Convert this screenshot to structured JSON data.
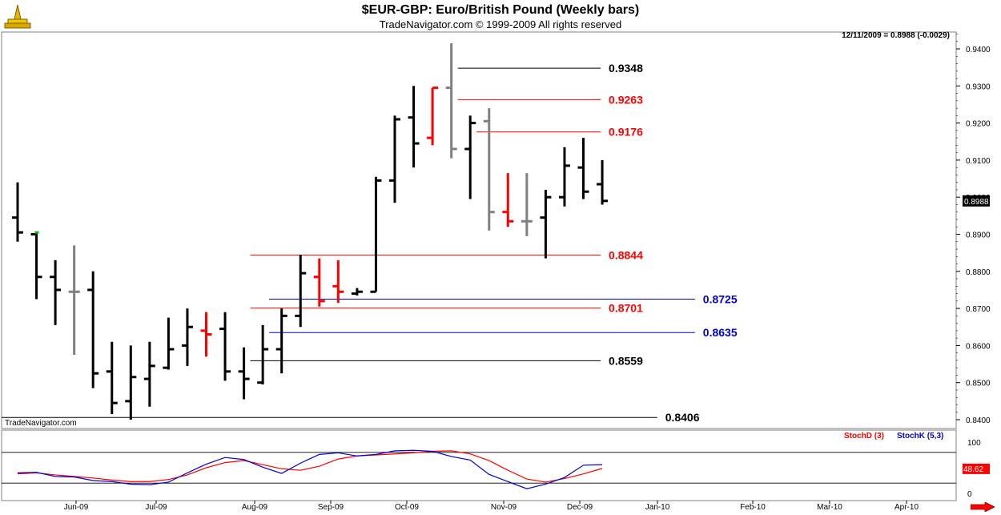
{
  "header": {
    "title": "$EUR-GBP:  Euro/British Pound  (Weekly bars)",
    "subtitle": "TradeNavigator.com © 1999-2009 All rights reserved",
    "last_quote": "12/11/2009 = 0.8988 (-0.0029)"
  },
  "watermark": "TradeNavigator.com",
  "colors": {
    "up_bar": "#000000",
    "down_bar": "#ff0000",
    "neutral_bar": "#808080",
    "red_level": "#ff0000",
    "blue_level": "#0000cc",
    "black_level": "#000000",
    "stoch_d": "#ff0000",
    "stoch_k": "#0000cc"
  },
  "chart_data": [
    {
      "type": "ohlc",
      "y_ticks": [
        "0.9400",
        "0.9300",
        "0.9200",
        "0.9100",
        "0.9000",
        "0.8900",
        "0.8800",
        "0.8700",
        "0.8600",
        "0.8500",
        "0.8400"
      ],
      "ylim": [
        0.8385,
        0.9455
      ],
      "x_ticks": [
        "Jun-09",
        "Jul-09",
        "Aug-09",
        "Sep-09",
        "Oct-09",
        "Nov-09",
        "Dec-09",
        "Jan-10",
        "Feb-10",
        "Mar-10",
        "Apr-10"
      ],
      "last_price_label": "0.8988",
      "bars": [
        {
          "o": 0.8945,
          "h": 0.904,
          "l": 0.888,
          "c": 0.8905,
          "col": "k"
        },
        {
          "o": 0.89,
          "h": 0.8905,
          "l": 0.8725,
          "c": 0.8785,
          "col": "k"
        },
        {
          "o": 0.8785,
          "h": 0.883,
          "l": 0.8655,
          "c": 0.875,
          "col": "k"
        },
        {
          "o": 0.8745,
          "h": 0.887,
          "l": 0.8575,
          "c": 0.8745,
          "col": "g"
        },
        {
          "o": 0.875,
          "h": 0.88,
          "l": 0.8485,
          "c": 0.8525,
          "col": "k"
        },
        {
          "o": 0.853,
          "h": 0.861,
          "l": 0.8415,
          "c": 0.8445,
          "col": "k"
        },
        {
          "o": 0.845,
          "h": 0.86,
          "l": 0.84,
          "c": 0.8515,
          "col": "k"
        },
        {
          "o": 0.851,
          "h": 0.861,
          "l": 0.8435,
          "c": 0.8545,
          "col": "k"
        },
        {
          "o": 0.854,
          "h": 0.8675,
          "l": 0.8535,
          "c": 0.859,
          "col": "k"
        },
        {
          "o": 0.86,
          "h": 0.87,
          "l": 0.8545,
          "c": 0.865,
          "col": "k"
        },
        {
          "o": 0.864,
          "h": 0.869,
          "l": 0.857,
          "c": 0.863,
          "col": "r"
        },
        {
          "o": 0.8645,
          "h": 0.869,
          "l": 0.8505,
          "c": 0.853,
          "col": "k"
        },
        {
          "o": 0.853,
          "h": 0.8595,
          "l": 0.8455,
          "c": 0.851,
          "col": "k"
        },
        {
          "o": 0.85,
          "h": 0.8655,
          "l": 0.8495,
          "c": 0.859,
          "col": "k"
        },
        {
          "o": 0.859,
          "h": 0.87,
          "l": 0.8525,
          "c": 0.868,
          "col": "k"
        },
        {
          "o": 0.868,
          "h": 0.8845,
          "l": 0.865,
          "c": 0.8795,
          "col": "k"
        },
        {
          "o": 0.8785,
          "h": 0.8835,
          "l": 0.8705,
          "c": 0.872,
          "col": "r"
        },
        {
          "o": 0.876,
          "h": 0.883,
          "l": 0.8715,
          "c": 0.8745,
          "col": "r"
        },
        {
          "o": 0.874,
          "h": 0.8755,
          "l": 0.8735,
          "c": 0.8745,
          "col": "k"
        },
        {
          "o": 0.8745,
          "h": 0.9055,
          "l": 0.8745,
          "c": 0.9045,
          "col": "k"
        },
        {
          "o": 0.9045,
          "h": 0.922,
          "l": 0.8985,
          "c": 0.921,
          "col": "k"
        },
        {
          "o": 0.9215,
          "h": 0.93,
          "l": 0.908,
          "c": 0.9145,
          "col": "k"
        },
        {
          "o": 0.916,
          "h": 0.9295,
          "l": 0.914,
          "c": 0.9295,
          "col": "r"
        },
        {
          "o": 0.9295,
          "h": 0.9415,
          "l": 0.9105,
          "c": 0.913,
          "col": "g"
        },
        {
          "o": 0.913,
          "h": 0.922,
          "l": 0.8995,
          "c": 0.92,
          "col": "k"
        },
        {
          "o": 0.9205,
          "h": 0.924,
          "l": 0.891,
          "c": 0.896,
          "col": "g"
        },
        {
          "o": 0.896,
          "h": 0.9065,
          "l": 0.892,
          "c": 0.8935,
          "col": "r"
        },
        {
          "o": 0.8935,
          "h": 0.9065,
          "l": 0.8895,
          "c": 0.8935,
          "col": "g"
        },
        {
          "o": 0.8945,
          "h": 0.902,
          "l": 0.8835,
          "c": 0.9,
          "col": "k"
        },
        {
          "o": 0.9,
          "h": 0.9135,
          "l": 0.8975,
          "c": 0.9085,
          "col": "k"
        },
        {
          "o": 0.908,
          "h": 0.916,
          "l": 0.8995,
          "c": 0.9015,
          "col": "k"
        },
        {
          "o": 0.9035,
          "h": 0.91,
          "l": 0.898,
          "c": 0.899,
          "col": "k"
        }
      ],
      "levels": [
        {
          "label": "0.9348",
          "value": 0.9348,
          "color": "black",
          "from_bar": 23,
          "label_bar": 31
        },
        {
          "label": "0.9263",
          "value": 0.9263,
          "color": "red",
          "from_bar": 23,
          "label_bar": 31
        },
        {
          "label": "0.9176",
          "value": 0.9176,
          "color": "red",
          "from_bar": 24,
          "label_bar": 31
        },
        {
          "label": "0.8844",
          "value": 0.8844,
          "color": "red",
          "from_bar": 12,
          "label_bar": 31
        },
        {
          "label": "0.8725",
          "value": 0.8725,
          "color": "blue",
          "from_bar": 13,
          "label_bar": 36
        },
        {
          "label": "0.8701",
          "value": 0.8701,
          "color": "red",
          "from_bar": 12,
          "label_bar": 31
        },
        {
          "label": "0.8635",
          "value": 0.8635,
          "color": "blue",
          "from_bar": 13,
          "label_bar": 36
        },
        {
          "label": "0.8559",
          "value": 0.8559,
          "color": "black",
          "from_bar": 12,
          "label_bar": 31
        },
        {
          "label": "0.8406",
          "value": 0.8406,
          "color": "black",
          "from_bar": -1,
          "label_bar": 34
        }
      ]
    },
    {
      "type": "line",
      "legend": [
        "StochD (3)",
        "StochK (5,3)"
      ],
      "y_ticks": [
        "100",
        "0"
      ],
      "ylim": [
        0,
        100
      ],
      "reference_lines": [
        80,
        20
      ],
      "last_value_label": "48.62",
      "series": [
        {
          "name": "StochD (3)",
          "color": "red",
          "values": [
            38,
            40,
            36,
            33,
            30,
            26,
            23,
            23,
            27,
            36,
            50,
            60,
            64,
            56,
            48,
            45,
            53,
            67,
            73,
            75,
            77,
            79,
            82,
            83,
            77,
            64,
            45,
            28,
            22,
            29,
            38,
            48.62
          ]
        },
        {
          "name": "StochK (5,3)",
          "color": "blue",
          "values": [
            40,
            41,
            33,
            32,
            25,
            23,
            18,
            17,
            22,
            40,
            57,
            70,
            66,
            51,
            39,
            59,
            76,
            79,
            73,
            76,
            83,
            84,
            82,
            72,
            65,
            37,
            23,
            9,
            18,
            31,
            55,
            56
          ]
        }
      ]
    }
  ]
}
